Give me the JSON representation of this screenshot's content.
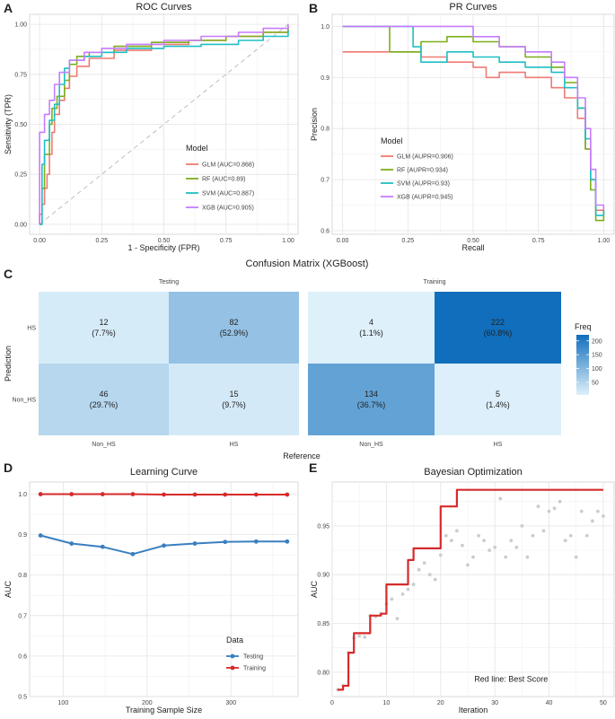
{
  "panels": {
    "A": {
      "letter": "A"
    },
    "B": {
      "letter": "B"
    },
    "C": {
      "letter": "C"
    },
    "D": {
      "letter": "D"
    },
    "E": {
      "letter": "E"
    }
  },
  "colors": {
    "GLM": "#f07a74",
    "RF": "#7cae1a",
    "SVM": "#1fbfc4",
    "XGB": "#c77cff",
    "testing": "#3a7fbf",
    "training": "#d62a2a",
    "best": "#d62a2a",
    "scatter": "#cccccc"
  },
  "chart_data": [
    {
      "type": "line",
      "panel": "A",
      "title": "ROC Curves",
      "xlabel": "1 - Specificity (FPR)",
      "ylabel": "Sensitivity (TPR)",
      "xlim": [
        0,
        1
      ],
      "ylim": [
        0,
        1
      ],
      "xticks": [
        "0.00",
        "0.25",
        "0.50",
        "0.75",
        "1.00"
      ],
      "yticks": [
        "0.00",
        "0.25",
        "0.50",
        "0.75",
        "1.00"
      ],
      "legend_title": "Model",
      "legend_position": "bottom-right",
      "diagonal": true,
      "series": [
        {
          "key": "GLM",
          "name": "GLM (AUC=0.868)",
          "points": [
            [
              0,
              0
            ],
            [
              0,
              0.05
            ],
            [
              0.01,
              0.1
            ],
            [
              0.02,
              0.18
            ],
            [
              0.03,
              0.25
            ],
            [
              0.04,
              0.35
            ],
            [
              0.05,
              0.46
            ],
            [
              0.06,
              0.55
            ],
            [
              0.08,
              0.62
            ],
            [
              0.1,
              0.68
            ],
            [
              0.12,
              0.74
            ],
            [
              0.15,
              0.79
            ],
            [
              0.2,
              0.83
            ],
            [
              0.3,
              0.87
            ],
            [
              0.45,
              0.9
            ],
            [
              0.6,
              0.92
            ],
            [
              0.75,
              0.94
            ],
            [
              0.9,
              0.96
            ],
            [
              1,
              0.99
            ]
          ]
        },
        {
          "key": "RF",
          "name": "RF (AUC=0.89)",
          "points": [
            [
              0,
              0
            ],
            [
              0.01,
              0.18
            ],
            [
              0.02,
              0.35
            ],
            [
              0.04,
              0.5
            ],
            [
              0.05,
              0.58
            ],
            [
              0.07,
              0.64
            ],
            [
              0.1,
              0.72
            ],
            [
              0.12,
              0.8
            ],
            [
              0.15,
              0.84
            ],
            [
              0.2,
              0.86
            ],
            [
              0.3,
              0.89
            ],
            [
              0.45,
              0.91
            ],
            [
              0.6,
              0.92
            ],
            [
              0.75,
              0.94
            ],
            [
              0.9,
              0.96
            ],
            [
              1,
              0.99
            ]
          ]
        },
        {
          "key": "SVM",
          "name": "SVM (AUC=0.887)",
          "points": [
            [
              0,
              0
            ],
            [
              0.01,
              0.3
            ],
            [
              0.02,
              0.42
            ],
            [
              0.04,
              0.52
            ],
            [
              0.06,
              0.6
            ],
            [
              0.08,
              0.7
            ],
            [
              0.1,
              0.78
            ],
            [
              0.12,
              0.82
            ],
            [
              0.18,
              0.84
            ],
            [
              0.25,
              0.86
            ],
            [
              0.35,
              0.88
            ],
            [
              0.5,
              0.89
            ],
            [
              0.65,
              0.9
            ],
            [
              0.8,
              0.92
            ],
            [
              0.9,
              0.94
            ],
            [
              1,
              0.97
            ]
          ]
        },
        {
          "key": "XGB",
          "name": "XGB (AUC=0.905)",
          "points": [
            [
              0,
              0
            ],
            [
              0,
              0.46
            ],
            [
              0.02,
              0.55
            ],
            [
              0.04,
              0.62
            ],
            [
              0.06,
              0.7
            ],
            [
              0.08,
              0.76
            ],
            [
              0.12,
              0.82
            ],
            [
              0.18,
              0.86
            ],
            [
              0.25,
              0.88
            ],
            [
              0.35,
              0.9
            ],
            [
              0.5,
              0.92
            ],
            [
              0.65,
              0.94
            ],
            [
              0.8,
              0.96
            ],
            [
              0.9,
              0.98
            ],
            [
              1,
              1
            ]
          ]
        }
      ]
    },
    {
      "type": "line",
      "panel": "B",
      "title": "PR Curves",
      "xlabel": "Recall",
      "ylabel": "Precision",
      "xlim": [
        0,
        1
      ],
      "ylim": [
        0.6,
        1.0
      ],
      "xticks": [
        "0.00",
        "0.25",
        "0.50",
        "0.75",
        "1.00"
      ],
      "yticks": [
        "0.6",
        "0.7",
        "0.8",
        "0.9",
        "1.0"
      ],
      "legend_title": "Model",
      "legend_position": "bottom-left",
      "series": [
        {
          "key": "GLM",
          "name": "GLM (AUPR=0.906)",
          "points": [
            [
              0,
              0.95
            ],
            [
              0.18,
              0.95
            ],
            [
              0.3,
              0.94
            ],
            [
              0.4,
              0.93
            ],
            [
              0.5,
              0.92
            ],
            [
              0.55,
              0.9
            ],
            [
              0.6,
              0.91
            ],
            [
              0.7,
              0.9
            ],
            [
              0.8,
              0.88
            ],
            [
              0.85,
              0.86
            ],
            [
              0.9,
              0.82
            ],
            [
              0.93,
              0.76
            ],
            [
              0.95,
              0.7
            ],
            [
              0.97,
              0.64
            ],
            [
              1,
              0.63
            ]
          ]
        },
        {
          "key": "RF",
          "name": "RF (AUPR=0.934)",
          "points": [
            [
              0,
              1.0
            ],
            [
              0.18,
              1.0
            ],
            [
              0.18,
              0.95
            ],
            [
              0.3,
              0.97
            ],
            [
              0.4,
              0.98
            ],
            [
              0.5,
              0.97
            ],
            [
              0.6,
              0.96
            ],
            [
              0.7,
              0.94
            ],
            [
              0.8,
              0.92
            ],
            [
              0.85,
              0.89
            ],
            [
              0.9,
              0.84
            ],
            [
              0.93,
              0.76
            ],
            [
              0.95,
              0.68
            ],
            [
              0.97,
              0.62
            ],
            [
              1,
              0.64
            ]
          ]
        },
        {
          "key": "SVM",
          "name": "SVM (AUPR=0.93)",
          "points": [
            [
              0,
              1.0
            ],
            [
              0.27,
              1.0
            ],
            [
              0.27,
              0.96
            ],
            [
              0.3,
              0.93
            ],
            [
              0.4,
              0.95
            ],
            [
              0.5,
              0.94
            ],
            [
              0.6,
              0.93
            ],
            [
              0.7,
              0.92
            ],
            [
              0.8,
              0.91
            ],
            [
              0.85,
              0.88
            ],
            [
              0.9,
              0.84
            ],
            [
              0.93,
              0.78
            ],
            [
              0.95,
              0.7
            ],
            [
              0.97,
              0.63
            ],
            [
              1,
              0.64
            ]
          ]
        },
        {
          "key": "XGB",
          "name": "XGB (AUPR=0.945)",
          "points": [
            [
              0,
              1.0
            ],
            [
              0.47,
              1.0
            ],
            [
              0.5,
              0.98
            ],
            [
              0.6,
              0.96
            ],
            [
              0.7,
              0.95
            ],
            [
              0.8,
              0.93
            ],
            [
              0.85,
              0.9
            ],
            [
              0.9,
              0.86
            ],
            [
              0.93,
              0.8
            ],
            [
              0.95,
              0.72
            ],
            [
              0.97,
              0.65
            ],
            [
              1,
              0.64
            ]
          ]
        }
      ]
    },
    {
      "type": "heatmap",
      "panel": "C",
      "title": "Confusion Matrix (XGBoost)",
      "xlabel": "Reference",
      "ylabel": "Prediction",
      "legend_title": "Freq",
      "legend_ticks": [
        50,
        100,
        150,
        200
      ],
      "freq_range": [
        4,
        222
      ],
      "facets": [
        {
          "name": "Testing",
          "x": [
            "Non_HS",
            "HS"
          ],
          "y": [
            "HS",
            "Non_HS"
          ],
          "cells": [
            {
              "x": "Non_HS",
              "y": "HS",
              "count": "12",
              "pct": "(7.7%)",
              "value": 12
            },
            {
              "x": "HS",
              "y": "HS",
              "count": "82",
              "pct": "(52.9%)",
              "value": 82
            },
            {
              "x": "Non_HS",
              "y": "Non_HS",
              "count": "46",
              "pct": "(29.7%)",
              "value": 46
            },
            {
              "x": "HS",
              "y": "Non_HS",
              "count": "15",
              "pct": "(9.7%)",
              "value": 15
            }
          ]
        },
        {
          "name": "Training",
          "x": [
            "Non_HS",
            "HS"
          ],
          "y": [
            "HS",
            "Non_HS"
          ],
          "cells": [
            {
              "x": "Non_HS",
              "y": "HS",
              "count": "4",
              "pct": "(1.1%)",
              "value": 4
            },
            {
              "x": "HS",
              "y": "HS",
              "count": "222",
              "pct": "(60.8%)",
              "value": 222
            },
            {
              "x": "Non_HS",
              "y": "Non_HS",
              "count": "134",
              "pct": "(36.7%)",
              "value": 134
            },
            {
              "x": "HS",
              "y": "Non_HS",
              "count": "5",
              "pct": "(1.4%)",
              "value": 5
            }
          ]
        }
      ]
    },
    {
      "type": "line",
      "panel": "D",
      "title": "Learning Curve",
      "xlabel": "Training Sample Size",
      "ylabel": "AUC",
      "xlim": [
        60,
        380
      ],
      "ylim": [
        0.5,
        1.03
      ],
      "xticks": [
        100,
        200,
        300
      ],
      "yticks": [
        "0.5",
        "0.6",
        "0.7",
        "0.8",
        "0.9",
        "1.0"
      ],
      "legend_title": "Data",
      "legend_position": "bottom-right",
      "series": [
        {
          "key": "testing",
          "name": "Testing",
          "x": [
            73,
            110,
            147,
            183,
            220,
            257,
            293,
            330,
            367
          ],
          "y": [
            0.898,
            0.878,
            0.87,
            0.852,
            0.873,
            0.878,
            0.882,
            0.883,
            0.883
          ]
        },
        {
          "key": "training",
          "name": "Training",
          "x": [
            73,
            110,
            147,
            183,
            220,
            257,
            293,
            330,
            367
          ],
          "y": [
            1.0,
            1.0,
            1.0,
            1.0,
            0.999,
            0.999,
            0.999,
            0.999,
            0.999
          ]
        }
      ]
    },
    {
      "type": "scatter",
      "panel": "E",
      "title": "Bayesian Optimization",
      "xlabel": "Iteration",
      "ylabel": "AUC",
      "xlim": [
        0,
        52
      ],
      "ylim": [
        0.775,
        0.995
      ],
      "xticks": [
        0,
        10,
        20,
        30,
        40,
        50
      ],
      "yticks": [
        "0.80",
        "0.85",
        "0.90",
        "0.95"
      ],
      "annotation": "Red line: Best Score",
      "points": {
        "x": [
          1,
          2,
          3,
          4,
          5,
          6,
          7,
          8,
          9,
          10,
          11,
          12,
          13,
          14,
          15,
          16,
          17,
          18,
          19,
          20,
          21,
          22,
          23,
          24,
          25,
          26,
          27,
          28,
          29,
          30,
          31,
          32,
          33,
          34,
          35,
          36,
          37,
          38,
          39,
          40,
          41,
          42,
          43,
          44,
          45,
          46,
          47,
          48,
          49,
          50
        ],
        "y": [
          0.782,
          0.786,
          0.82,
          0.835,
          0.837,
          0.836,
          0.858,
          0.857,
          0.86,
          0.87,
          0.875,
          0.855,
          0.88,
          0.885,
          0.89,
          0.905,
          0.912,
          0.9,
          0.895,
          0.92,
          0.94,
          0.935,
          0.945,
          0.93,
          0.91,
          0.918,
          0.94,
          0.935,
          0.925,
          0.928,
          0.978,
          0.918,
          0.935,
          0.928,
          0.95,
          0.918,
          0.94,
          0.97,
          0.945,
          0.965,
          0.968,
          0.975,
          0.935,
          0.94,
          0.918,
          0.965,
          0.94,
          0.955,
          0.965,
          0.96
        ]
      },
      "best": {
        "x": [
          1,
          2,
          3,
          4,
          5,
          6,
          7,
          8,
          9,
          10,
          11,
          12,
          13,
          14,
          15,
          16,
          17,
          18,
          19,
          20,
          21,
          22,
          23,
          50
        ],
        "y": [
          0.782,
          0.786,
          0.82,
          0.84,
          0.84,
          0.84,
          0.858,
          0.858,
          0.86,
          0.89,
          0.89,
          0.89,
          0.89,
          0.915,
          0.927,
          0.927,
          0.927,
          0.927,
          0.927,
          0.97,
          0.97,
          0.97,
          0.987,
          0.987
        ]
      }
    }
  ]
}
